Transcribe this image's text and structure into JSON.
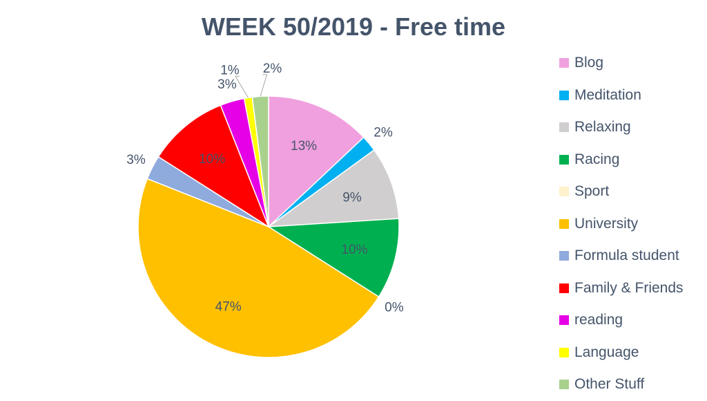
{
  "chart_data": {
    "type": "pie",
    "title": "WEEK 50/2019 - Free time",
    "start_angle": "top, clockwise",
    "legend_position": "right",
    "slices": [
      {
        "label": "Blog",
        "value": 13,
        "display": "13%",
        "color": "#f0a0de",
        "label_placement": "inside"
      },
      {
        "label": "Meditation",
        "value": 2,
        "display": "2%",
        "color": "#00b0f0",
        "label_placement": "outside"
      },
      {
        "label": "Relaxing",
        "value": 9,
        "display": "9%",
        "color": "#d0cece",
        "label_placement": "inside"
      },
      {
        "label": "Racing",
        "value": 10,
        "display": "10%",
        "color": "#00b050",
        "label_placement": "inside"
      },
      {
        "label": "Sport",
        "value": 0,
        "display": "0%",
        "color": "#fff2cc",
        "label_placement": "outside"
      },
      {
        "label": "University",
        "value": 47,
        "display": "47%",
        "color": "#ffc000",
        "label_placement": "inside"
      },
      {
        "label": "Formula student",
        "value": 3,
        "display": "3%",
        "color": "#8faadc",
        "label_placement": "outside"
      },
      {
        "label": "Family & Friends",
        "value": 10,
        "display": "10%",
        "color": "#ff0000",
        "label_placement": "inside"
      },
      {
        "label": "reading",
        "value": 3,
        "display": "3%",
        "color": "#e600e6",
        "label_placement": "outside"
      },
      {
        "label": "Language",
        "value": 1,
        "display": "1%",
        "color": "#ffff00",
        "label_placement": "leader"
      },
      {
        "label": "Other Stuff",
        "value": 2,
        "display": "2%",
        "color": "#a9d18e",
        "label_placement": "leader"
      }
    ]
  }
}
